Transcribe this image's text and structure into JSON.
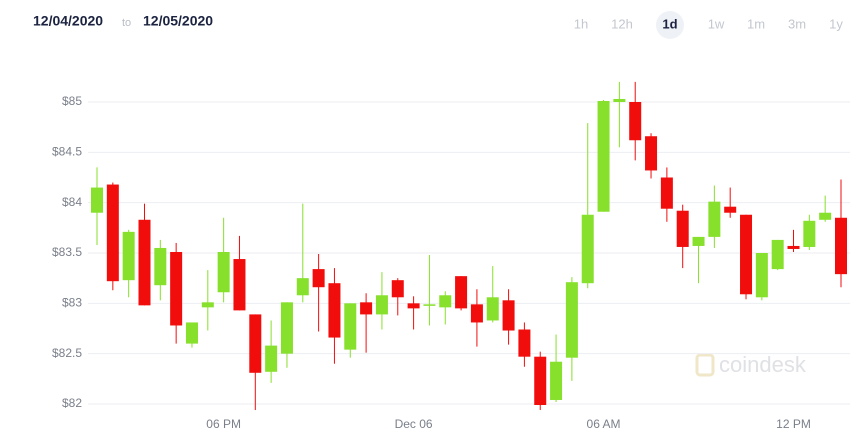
{
  "header": {
    "date_from": "12/04/2020",
    "separator": "to",
    "date_to": "12/05/2020",
    "ranges": [
      "1h",
      "12h",
      "1d",
      "1w",
      "1m",
      "3m",
      "1y"
    ],
    "selected": 2
  },
  "watermark": "coindesk",
  "chart_data": {
    "type": "candlestick",
    "categories": [
      null,
      null,
      null,
      null,
      null,
      null,
      null,
      null,
      "06 PM",
      null,
      null,
      null,
      null,
      null,
      null,
      null,
      null,
      null,
      null,
      null,
      "Dec 06",
      null,
      null,
      null,
      null,
      null,
      null,
      null,
      null,
      null,
      null,
      null,
      "06 AM",
      null,
      null,
      null,
      null,
      null,
      null,
      null,
      null,
      null,
      null,
      null,
      "12 PM",
      null,
      null,
      null
    ],
    "open": [
      83.9,
      84.18,
      83.23,
      83.83,
      83.18,
      83.51,
      82.6,
      82.96,
      83.11,
      83.44,
      82.89,
      82.32,
      82.5,
      83.08,
      83.34,
      83.2,
      82.54,
      83.01,
      82.89,
      83.23,
      83.0,
      82.98,
      82.96,
      83.27,
      82.99,
      82.83,
      83.03,
      82.74,
      82.47,
      82.04,
      82.46,
      83.2,
      83.91,
      85.0,
      85.0,
      84.66,
      84.25,
      83.92,
      83.57,
      83.66,
      83.96,
      83.88,
      83.06,
      83.34,
      83.57,
      83.56,
      83.83,
      83.85
    ],
    "high": [
      84.35,
      84.2,
      83.73,
      83.99,
      83.63,
      83.6,
      82.81,
      83.33,
      83.85,
      83.67,
      82.89,
      82.83,
      83.01,
      83.99,
      83.49,
      83.35,
      83.0,
      83.1,
      83.31,
      83.25,
      83.07,
      83.48,
      83.12,
      83.27,
      83.14,
      83.37,
      83.14,
      82.81,
      82.52,
      82.69,
      83.26,
      84.79,
      85.02,
      85.2,
      85.2,
      84.69,
      84.35,
      83.98,
      83.66,
      84.17,
      84.15,
      83.88,
      83.5,
      83.63,
      83.73,
      83.88,
      84.07,
      84.23
    ],
    "low": [
      83.58,
      83.13,
      83.06,
      82.98,
      83.03,
      82.6,
      82.56,
      82.73,
      83.01,
      82.93,
      81.94,
      82.21,
      82.36,
      83.01,
      82.72,
      82.4,
      82.46,
      82.51,
      82.74,
      82.88,
      82.74,
      82.78,
      82.79,
      82.93,
      82.57,
      82.81,
      82.59,
      82.37,
      81.94,
      82.02,
      82.23,
      83.15,
      83.91,
      84.55,
      84.42,
      84.24,
      83.81,
      83.35,
      83.2,
      83.55,
      83.85,
      83.04,
      83.03,
      83.33,
      83.51,
      83.53,
      83.81,
      83.16
    ],
    "close": [
      84.15,
      83.22,
      83.71,
      82.98,
      83.55,
      82.78,
      82.81,
      83.01,
      83.51,
      82.93,
      82.31,
      82.58,
      83.01,
      83.25,
      83.16,
      82.66,
      83.0,
      82.89,
      83.08,
      83.06,
      82.95,
      82.99,
      83.08,
      82.95,
      82.81,
      83.06,
      82.73,
      82.47,
      81.99,
      82.42,
      83.21,
      83.88,
      85.01,
      85.03,
      84.62,
      84.32,
      83.94,
      83.56,
      83.66,
      84.01,
      83.9,
      83.09,
      83.5,
      83.63,
      83.54,
      83.82,
      83.9,
      83.29
    ],
    "up_color": "#87e02b",
    "down_color": "#f20d0d",
    "ylim": [
      81.85,
      85.45
    ],
    "yticks": [
      {
        "value": 82,
        "label": "$82"
      },
      {
        "value": 82.5,
        "label": "$82.5"
      },
      {
        "value": 83,
        "label": "$83"
      },
      {
        "value": 83.5,
        "label": "$83.5"
      },
      {
        "value": 84,
        "label": "$84"
      },
      {
        "value": 84.5,
        "label": "$84.5"
      },
      {
        "value": 85,
        "label": "$85"
      }
    ],
    "grid": true
  }
}
